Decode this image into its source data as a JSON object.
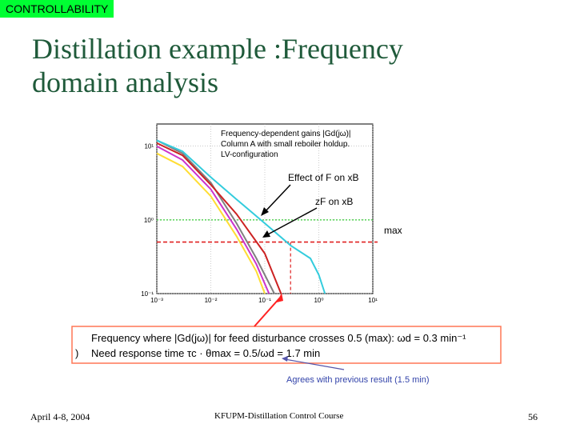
{
  "header_tag": "CONTROLLABILITY",
  "title_line1": "Distillation example :Frequency",
  "title_line2": "domain analysis",
  "chart_data": {
    "type": "line",
    "xscale": "log",
    "yscale": "log",
    "xlim": [
      0.001,
      10
    ],
    "ylim": [
      0.1,
      20
    ],
    "x_tick_labels": [
      "10⁻³",
      "10⁻²",
      "10⁻¹",
      "10⁰",
      "10¹"
    ],
    "y_tick_labels": [
      "10¹",
      "10⁰",
      "10⁻¹"
    ],
    "annotations": {
      "legend_line1": "Frequency-dependent gains |Gd(jω)|",
      "legend_line2": "Column A with small reboiler holdup.",
      "legend_line3": "LV-configuration",
      "effect_label": "Effect of F on xB",
      "zf_label": "zF on xB",
      "max_label": "max"
    },
    "reference_lines": [
      {
        "name": "1",
        "y": 1,
        "color": "#33cc33"
      },
      {
        "name": "max",
        "y": 0.5,
        "color": "#e02020"
      }
    ],
    "series": [
      {
        "color": "#808080",
        "points": [
          [
            0.001,
            12
          ],
          [
            0.003,
            8
          ],
          [
            0.01,
            3.2
          ],
          [
            0.03,
            0.9
          ],
          [
            0.07,
            0.3
          ],
          [
            0.15,
            0.1
          ]
        ]
      },
      {
        "color": "#cc33cc",
        "points": [
          [
            0.001,
            10
          ],
          [
            0.003,
            6.5
          ],
          [
            0.01,
            2.6
          ],
          [
            0.03,
            0.75
          ],
          [
            0.07,
            0.25
          ],
          [
            0.12,
            0.1
          ]
        ]
      },
      {
        "color": "#ffdd33",
        "points": [
          [
            0.001,
            8
          ],
          [
            0.003,
            5.3
          ],
          [
            0.01,
            2.1
          ],
          [
            0.03,
            0.6
          ],
          [
            0.07,
            0.2
          ],
          [
            0.1,
            0.1
          ]
        ]
      },
      {
        "color": "#cc2222",
        "points": [
          [
            0.001,
            11
          ],
          [
            0.003,
            7.5
          ],
          [
            0.01,
            3
          ],
          [
            0.03,
            1.2
          ],
          [
            0.1,
            0.35
          ],
          [
            0.2,
            0.1
          ]
        ]
      },
      {
        "color": "#33ccdd",
        "points": [
          [
            0.001,
            12
          ],
          [
            0.003,
            8.5
          ],
          [
            0.01,
            3.8
          ],
          [
            0.03,
            1.9
          ],
          [
            0.1,
            0.9
          ],
          [
            0.3,
            0.45
          ],
          [
            0.7,
            0.3
          ],
          [
            1.0,
            0.18
          ],
          [
            1.3,
            0.1
          ]
        ]
      }
    ]
  },
  "callout": {
    "line1_text": "Frequency where |Gd(jω)| for feed disturbance crosses 0.5 (max): ωd = 0.3 min⁻¹",
    "line2_paren": ")",
    "line2_text": "Need response time τc · θmax = 0.5/ωd = 1.7 min"
  },
  "agrees_text": "Agrees with previous result (1.5 min)",
  "footer_left": "April 4-8, 2004",
  "footer_center": "KFUPM-Distillation Control Course",
  "footer_right": "56"
}
